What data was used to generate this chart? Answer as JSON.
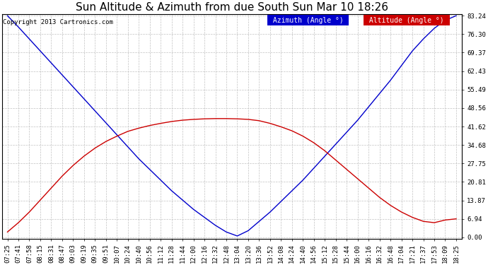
{
  "title": "Sun Altitude & Azimuth from due South Sun Mar 10 18:26",
  "copyright": "Copyright 2013 Cartronics.com",
  "legend_azimuth": "Azimuth (Angle °)",
  "legend_altitude": "Altitude (Angle °)",
  "yticks": [
    0.0,
    6.94,
    13.87,
    20.81,
    27.75,
    34.68,
    41.62,
    48.56,
    55.49,
    62.43,
    69.37,
    76.3,
    83.24
  ],
  "ymax": 83.24,
  "ymin": 0.0,
  "background_color": "#ffffff",
  "grid_color": "#bbbbbb",
  "azimuth_color": "#0000cc",
  "altitude_color": "#cc0000",
  "title_fontsize": 11,
  "tick_fontsize": 6.5,
  "copyright_fontsize": 6.5,
  "legend_fontsize": 7,
  "xtick_labels": [
    "07:25",
    "07:41",
    "07:58",
    "08:15",
    "08:31",
    "08:47",
    "09:03",
    "09:19",
    "09:35",
    "09:51",
    "10:07",
    "10:24",
    "10:40",
    "10:56",
    "11:12",
    "11:28",
    "11:44",
    "12:00",
    "12:16",
    "12:32",
    "12:48",
    "13:04",
    "13:20",
    "13:36",
    "13:52",
    "14:08",
    "14:24",
    "14:40",
    "14:56",
    "15:12",
    "15:28",
    "15:44",
    "16:00",
    "16:16",
    "16:32",
    "16:48",
    "17:04",
    "17:21",
    "17:37",
    "17:53",
    "18:09",
    "18:25"
  ],
  "alt_values": [
    2.0,
    5.5,
    9.5,
    14.0,
    18.5,
    23.0,
    27.0,
    30.5,
    33.5,
    36.0,
    38.0,
    39.8,
    41.0,
    42.0,
    42.8,
    43.5,
    44.0,
    44.3,
    44.5,
    44.6,
    44.6,
    44.5,
    44.3,
    43.8,
    42.8,
    41.5,
    40.0,
    38.0,
    35.5,
    32.5,
    29.0,
    25.5,
    22.0,
    18.5,
    15.0,
    12.0,
    9.5,
    7.5,
    6.0,
    5.5,
    6.5,
    6.94
  ],
  "az_values": [
    83.24,
    79.0,
    74.5,
    70.0,
    65.5,
    61.0,
    56.5,
    52.0,
    47.5,
    43.0,
    38.5,
    34.0,
    29.5,
    25.5,
    21.5,
    17.5,
    14.0,
    10.5,
    7.5,
    4.5,
    2.0,
    0.5,
    2.5,
    6.0,
    9.5,
    13.5,
    17.5,
    21.5,
    26.0,
    30.5,
    35.0,
    39.5,
    44.0,
    49.0,
    54.0,
    59.0,
    64.5,
    70.0,
    74.5,
    78.5,
    81.5,
    83.24
  ]
}
